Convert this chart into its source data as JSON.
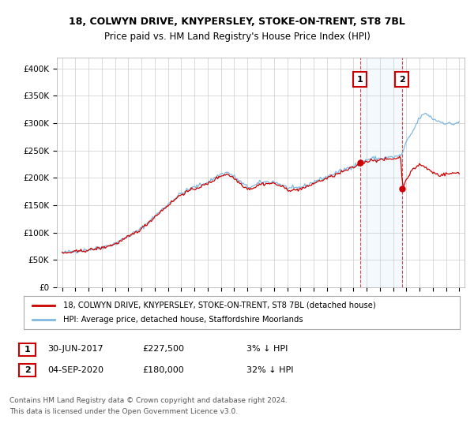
{
  "title1": "18, COLWYN DRIVE, KNYPERSLEY, STOKE-ON-TRENT, ST8 7BL",
  "title2": "Price paid vs. HM Land Registry's House Price Index (HPI)",
  "ylabel_ticks": [
    "£0",
    "£50K",
    "£100K",
    "£150K",
    "£200K",
    "£250K",
    "£300K",
    "£350K",
    "£400K"
  ],
  "ytick_values": [
    0,
    50000,
    100000,
    150000,
    200000,
    250000,
    300000,
    350000,
    400000
  ],
  "ylim": [
    0,
    420000
  ],
  "hpi_color": "#7fb9e0",
  "price_color": "#cc0000",
  "marker1_year": 2017.5,
  "marker1_price": 227500,
  "marker2_year": 2020.67,
  "marker2_price": 180000,
  "legend1": "18, COLWYN DRIVE, KNYPERSLEY, STOKE-ON-TRENT, ST8 7BL (detached house)",
  "legend2": "HPI: Average price, detached house, Staffordshire Moorlands",
  "transaction1_label": "1",
  "transaction1_date": "30-JUN-2017",
  "transaction1_price": "£227,500",
  "transaction1_hpi": "3% ↓ HPI",
  "transaction2_label": "2",
  "transaction2_date": "04-SEP-2020",
  "transaction2_price": "£180,000",
  "transaction2_hpi": "32% ↓ HPI",
  "footnote1": "Contains HM Land Registry data © Crown copyright and database right 2024.",
  "footnote2": "This data is licensed under the Open Government Licence v3.0.",
  "background_color": "#ffffff",
  "plot_bg_color": "#ffffff",
  "grid_color": "#cccccc"
}
